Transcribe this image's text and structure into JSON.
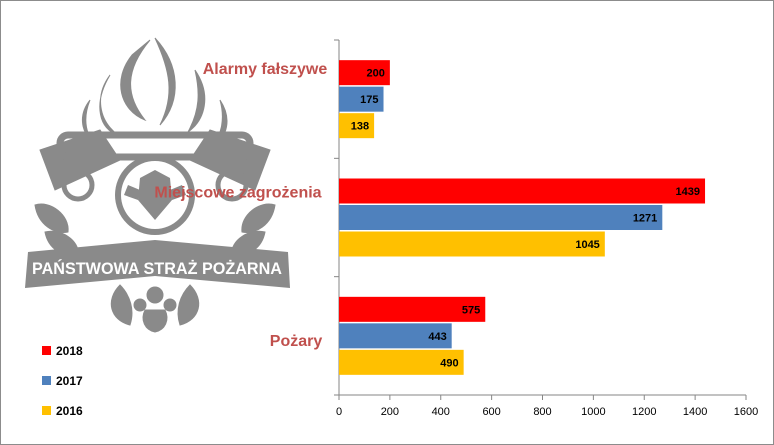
{
  "chart_data": {
    "type": "bar",
    "orientation": "horizontal",
    "categories": [
      "Alarmy fałszywe",
      "Miejscowe zagrożenia",
      "Pożary"
    ],
    "series": [
      {
        "name": "2018",
        "color": "#ff0000",
        "values": [
          200,
          1439,
          575
        ]
      },
      {
        "name": "2017",
        "color": "#4f81bd",
        "values": [
          175,
          1271,
          443
        ]
      },
      {
        "name": "2016",
        "color": "#ffc000",
        "values": [
          138,
          1045,
          490
        ]
      }
    ],
    "xlim": [
      0,
      1600
    ],
    "xticks": [
      0,
      200,
      400,
      600,
      800,
      1000,
      1200,
      1400,
      1600
    ],
    "grid": false,
    "legend_position": "bottom-left",
    "title": "",
    "xlabel": "",
    "ylabel": ""
  },
  "logo": {
    "text": "PAŃSTWOWA STRAŻ POŻARNA",
    "color": "#8a8a8a"
  }
}
